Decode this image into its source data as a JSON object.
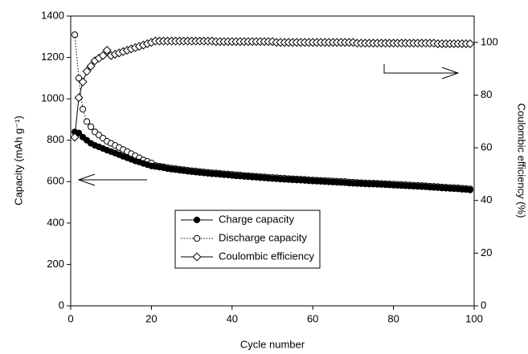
{
  "chart_data": {
    "type": "line",
    "x_label": "Cycle number",
    "y_label": "Capacity (mAh g⁻¹)",
    "y2_label": "Coulombic efficiency (%)",
    "x": [
      1,
      2,
      3,
      4,
      5,
      6,
      7,
      8,
      9,
      10,
      11,
      12,
      13,
      14,
      15,
      16,
      17,
      18,
      19,
      20,
      21,
      22,
      23,
      24,
      25,
      26,
      27,
      28,
      29,
      30,
      31,
      32,
      33,
      34,
      35,
      36,
      37,
      38,
      39,
      40,
      41,
      42,
      43,
      44,
      45,
      46,
      47,
      48,
      49,
      50,
      51,
      52,
      53,
      54,
      55,
      56,
      57,
      58,
      59,
      60,
      61,
      62,
      63,
      64,
      65,
      66,
      67,
      68,
      69,
      70,
      71,
      72,
      73,
      74,
      75,
      76,
      77,
      78,
      79,
      80,
      81,
      82,
      83,
      84,
      85,
      86,
      87,
      88,
      89,
      90,
      91,
      92,
      93,
      94,
      95,
      96,
      97,
      98,
      99
    ],
    "series": [
      {
        "name": "Discharge capacity",
        "color": "#000000",
        "marker": "open-circle",
        "dash": "dotted",
        "values": [
          1310,
          1100,
          950,
          890,
          865,
          840,
          825,
          810,
          795,
          785,
          775,
          765,
          755,
          745,
          735,
          725,
          715,
          705,
          698,
          690,
          678,
          675,
          672,
          668,
          665,
          663,
          660,
          658,
          655,
          653,
          651,
          649,
          647,
          645,
          643,
          642,
          640,
          638,
          637,
          635,
          633,
          632,
          630,
          629,
          627,
          626,
          624,
          623,
          621,
          620,
          619,
          617,
          616,
          615,
          614,
          613,
          612,
          611,
          609,
          608,
          607,
          606,
          605,
          604,
          603,
          602,
          601,
          600,
          598,
          597,
          596,
          595,
          594,
          593,
          593,
          592,
          591,
          590,
          589,
          588,
          587,
          586,
          585,
          584,
          583,
          582,
          581,
          580,
          578,
          577,
          576,
          574,
          573,
          572,
          571,
          570,
          568,
          567,
          565
        ]
      },
      {
        "name": "Charge capacity",
        "color": "#000000",
        "marker": "filled-circle",
        "dash": "solid",
        "values": [
          840,
          835,
          815,
          800,
          785,
          775,
          768,
          760,
          752,
          745,
          738,
          730,
          722,
          715,
          708,
          700,
          695,
          688,
          682,
          676,
          673,
          670,
          667,
          663,
          660,
          658,
          655,
          653,
          650,
          648,
          646,
          644,
          642,
          640,
          638,
          637,
          635,
          633,
          632,
          630,
          628,
          627,
          625,
          624,
          622,
          621,
          619,
          618,
          616,
          615,
          614,
          612,
          611,
          610,
          609,
          608,
          607,
          606,
          604,
          603,
          602,
          601,
          600,
          599,
          598,
          597,
          596,
          595,
          593,
          592,
          591,
          590,
          589,
          588,
          588,
          587,
          586,
          585,
          584,
          583,
          582,
          581,
          580,
          579,
          578,
          577,
          576,
          575,
          573,
          572,
          571,
          569,
          568,
          567,
          566,
          565,
          563,
          562,
          560
        ]
      },
      {
        "name": "Coulombic efficiency",
        "color": "#000000",
        "marker": "open-diamond",
        "dash": "solid",
        "axis": "y2",
        "values": [
          64,
          79,
          85,
          89,
          91,
          93,
          94,
          95,
          97,
          95,
          95.5,
          96,
          96.5,
          97,
          97.5,
          98,
          98.5,
          99,
          99.5,
          100,
          100.5,
          100.5,
          100.5,
          100.5,
          100.5,
          100.5,
          100.5,
          100.5,
          100.5,
          100.5,
          100.5,
          100.5,
          100.5,
          100.5,
          100.5,
          100.3,
          100.3,
          100.3,
          100.3,
          100.3,
          100.3,
          100.3,
          100.3,
          100.3,
          100.3,
          100.3,
          100.3,
          100.3,
          100.3,
          100.3,
          100,
          100,
          100,
          100,
          100,
          100,
          100,
          100,
          100,
          100,
          100,
          100,
          100,
          100,
          100,
          100,
          100,
          100,
          100,
          100,
          99.7,
          99.7,
          99.7,
          99.7,
          99.7,
          99.7,
          99.7,
          99.7,
          99.7,
          99.7,
          99.7,
          99.7,
          99.7,
          99.7,
          99.7,
          99.7,
          99.7,
          99.7,
          99.7,
          99.7,
          99.5,
          99.5,
          99.5,
          99.5,
          99.5,
          99.5,
          99.5,
          99.5,
          99.5
        ]
      }
    ],
    "legend_order": [
      1,
      0,
      2
    ],
    "xlim": [
      0,
      100
    ],
    "xticks": [
      0,
      20,
      40,
      60,
      80,
      100
    ],
    "ylim": [
      0,
      1400
    ],
    "yticks": [
      0,
      200,
      400,
      600,
      800,
      1000,
      1200,
      1400
    ],
    "y2lim": [
      0,
      110
    ],
    "y2ticks": [
      0,
      20,
      40,
      60,
      80,
      100
    ],
    "grid": false
  }
}
